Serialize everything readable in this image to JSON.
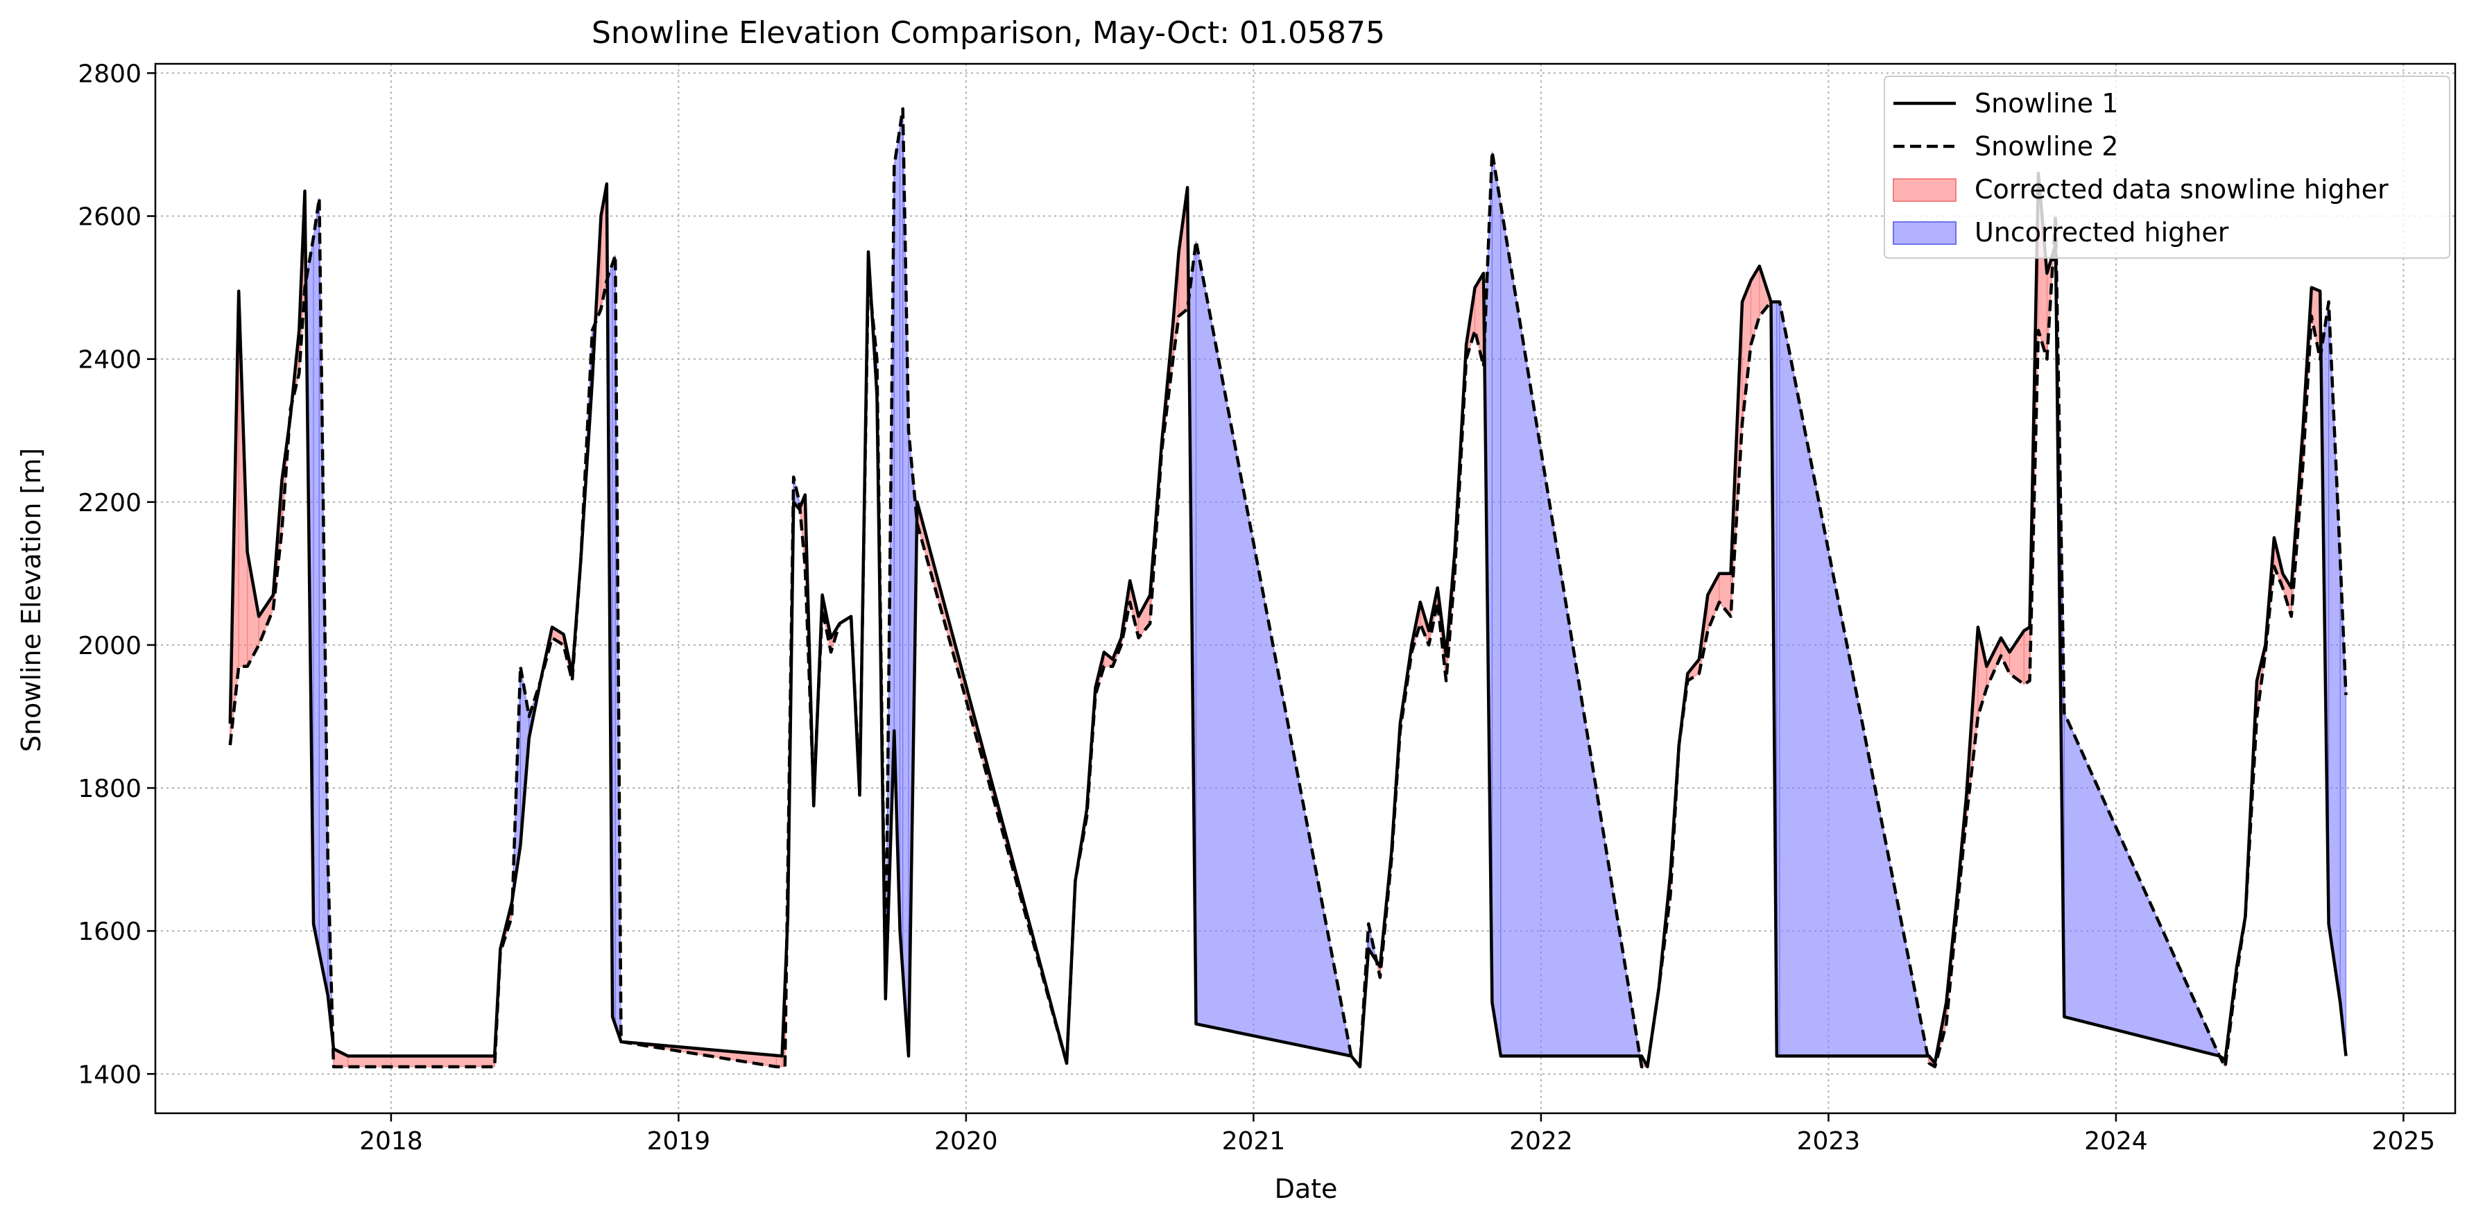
{
  "chart_data": {
    "type": "line",
    "title": "Snowline Elevation Comparison, May-Oct: 01.05875",
    "xlabel": "Date",
    "ylabel": "Snowline Elevation [m]",
    "x_ticks": [
      "2018",
      "2019",
      "2020",
      "2021",
      "2022",
      "2023",
      "2024",
      "2025"
    ],
    "x_tick_values": [
      2018.0,
      2019.0,
      2020.0,
      2021.0,
      2022.0,
      2023.0,
      2024.0,
      2025.0
    ],
    "y_ticks": [
      1400,
      1600,
      1800,
      2000,
      2200,
      2400,
      2600,
      2800
    ],
    "xlim": [
      2017.18,
      2025.18
    ],
    "ylim": [
      1345,
      2813
    ],
    "grid": true,
    "legend_position": "top-right",
    "series": [
      {
        "name": "Snowline 1",
        "style": "solid",
        "color": "#000000",
        "points": [
          [
            2017.44,
            1890
          ],
          [
            2017.47,
            2495
          ],
          [
            2017.5,
            2130
          ],
          [
            2017.54,
            2040
          ],
          [
            2017.59,
            2070
          ],
          [
            2017.62,
            2230
          ],
          [
            2017.65,
            2320
          ],
          [
            2017.68,
            2440
          ],
          [
            2017.7,
            2635
          ],
          [
            2017.73,
            1610
          ],
          [
            2017.78,
            1510
          ],
          [
            2017.8,
            1435
          ],
          [
            2017.85,
            1425
          ],
          [
            2018.36,
            1425
          ],
          [
            2018.38,
            1575
          ],
          [
            2018.42,
            1640
          ],
          [
            2018.45,
            1720
          ],
          [
            2018.48,
            1870
          ],
          [
            2018.52,
            1950
          ],
          [
            2018.56,
            2025
          ],
          [
            2018.6,
            2015
          ],
          [
            2018.63,
            1960
          ],
          [
            2018.66,
            2120
          ],
          [
            2018.7,
            2370
          ],
          [
            2018.73,
            2600
          ],
          [
            2018.75,
            2645
          ],
          [
            2018.77,
            1480
          ],
          [
            2018.8,
            1445
          ],
          [
            2019.36,
            1425
          ],
          [
            2019.38,
            1620
          ],
          [
            2019.4,
            2200
          ],
          [
            2019.42,
            2190
          ],
          [
            2019.44,
            2210
          ],
          [
            2019.47,
            1775
          ],
          [
            2019.5,
            2070
          ],
          [
            2019.53,
            2010
          ],
          [
            2019.56,
            2030
          ],
          [
            2019.6,
            2040
          ],
          [
            2019.63,
            1790
          ],
          [
            2019.66,
            2550
          ],
          [
            2019.69,
            2350
          ],
          [
            2019.72,
            1505
          ],
          [
            2019.75,
            1880
          ],
          [
            2019.77,
            1600
          ],
          [
            2019.8,
            1425
          ],
          [
            2019.83,
            2200
          ],
          [
            2020.35,
            1415
          ],
          [
            2020.38,
            1670
          ],
          [
            2020.42,
            1770
          ],
          [
            2020.45,
            1940
          ],
          [
            2020.48,
            1990
          ],
          [
            2020.51,
            1980
          ],
          [
            2020.54,
            2010
          ],
          [
            2020.57,
            2090
          ],
          [
            2020.6,
            2040
          ],
          [
            2020.64,
            2070
          ],
          [
            2020.68,
            2280
          ],
          [
            2020.72,
            2450
          ],
          [
            2020.74,
            2550
          ],
          [
            2020.77,
            2640
          ],
          [
            2020.8,
            1470
          ],
          [
            2021.34,
            1425
          ],
          [
            2021.37,
            1410
          ],
          [
            2021.4,
            1575
          ],
          [
            2021.44,
            1550
          ],
          [
            2021.48,
            1710
          ],
          [
            2021.51,
            1890
          ],
          [
            2021.55,
            2000
          ],
          [
            2021.58,
            2060
          ],
          [
            2021.61,
            2020
          ],
          [
            2021.64,
            2080
          ],
          [
            2021.67,
            1985
          ],
          [
            2021.7,
            2130
          ],
          [
            2021.74,
            2420
          ],
          [
            2021.77,
            2500
          ],
          [
            2021.8,
            2520
          ],
          [
            2021.83,
            1500
          ],
          [
            2021.86,
            1425
          ],
          [
            2022.35,
            1425
          ],
          [
            2022.37,
            1410
          ],
          [
            2022.41,
            1520
          ],
          [
            2022.45,
            1680
          ],
          [
            2022.48,
            1860
          ],
          [
            2022.51,
            1960
          ],
          [
            2022.55,
            1980
          ],
          [
            2022.58,
            2070
          ],
          [
            2022.62,
            2100
          ],
          [
            2022.66,
            2100
          ],
          [
            2022.7,
            2480
          ],
          [
            2022.73,
            2510
          ],
          [
            2022.76,
            2530
          ],
          [
            2022.8,
            2480
          ],
          [
            2022.82,
            1425
          ],
          [
            2023.35,
            1425
          ],
          [
            2023.37,
            1415
          ],
          [
            2023.41,
            1500
          ],
          [
            2023.45,
            1660
          ],
          [
            2023.48,
            1790
          ],
          [
            2023.52,
            2025
          ],
          [
            2023.55,
            1970
          ],
          [
            2023.6,
            2010
          ],
          [
            2023.63,
            1990
          ],
          [
            2023.68,
            2020
          ],
          [
            2023.7,
            2025
          ],
          [
            2023.73,
            2660
          ],
          [
            2023.76,
            2520
          ],
          [
            2023.79,
            2560
          ],
          [
            2023.82,
            1480
          ],
          [
            2024.36,
            1425
          ],
          [
            2024.38,
            1420
          ],
          [
            2024.42,
            1550
          ],
          [
            2024.45,
            1620
          ],
          [
            2024.49,
            1950
          ],
          [
            2024.52,
            2000
          ],
          [
            2024.55,
            2150
          ],
          [
            2024.58,
            2100
          ],
          [
            2024.61,
            2080
          ],
          [
            2024.65,
            2300
          ],
          [
            2024.68,
            2500
          ],
          [
            2024.71,
            2495
          ],
          [
            2024.74,
            1610
          ],
          [
            2024.78,
            1500
          ],
          [
            2024.8,
            1425
          ]
        ]
      },
      {
        "name": "Snowline 2",
        "style": "dashed",
        "color": "#000000",
        "points": [
          [
            2017.44,
            1860
          ],
          [
            2017.47,
            1970
          ],
          [
            2017.5,
            1970
          ],
          [
            2017.54,
            2000
          ],
          [
            2017.59,
            2050
          ],
          [
            2017.62,
            2160
          ],
          [
            2017.65,
            2330
          ],
          [
            2017.68,
            2380
          ],
          [
            2017.7,
            2500
          ],
          [
            2017.73,
            2570
          ],
          [
            2017.75,
            2625
          ],
          [
            2017.78,
            1700
          ],
          [
            2017.8,
            1410
          ],
          [
            2017.85,
            1410
          ],
          [
            2018.36,
            1410
          ],
          [
            2018.38,
            1570
          ],
          [
            2018.42,
            1620
          ],
          [
            2018.45,
            1970
          ],
          [
            2018.48,
            1900
          ],
          [
            2018.52,
            1950
          ],
          [
            2018.56,
            2010
          ],
          [
            2018.6,
            2000
          ],
          [
            2018.63,
            1950
          ],
          [
            2018.66,
            2120
          ],
          [
            2018.7,
            2440
          ],
          [
            2018.73,
            2470
          ],
          [
            2018.75,
            2510
          ],
          [
            2018.78,
            2545
          ],
          [
            2018.8,
            1445
          ],
          [
            2019.34,
            1410
          ],
          [
            2019.37,
            1410
          ],
          [
            2019.4,
            2235
          ],
          [
            2019.42,
            2200
          ],
          [
            2019.44,
            2110
          ],
          [
            2019.47,
            1790
          ],
          [
            2019.5,
            2050
          ],
          [
            2019.53,
            1990
          ],
          [
            2019.56,
            2030
          ],
          [
            2019.6,
            2040
          ],
          [
            2019.63,
            1800
          ],
          [
            2019.66,
            2520
          ],
          [
            2019.69,
            2400
          ],
          [
            2019.72,
            1520
          ],
          [
            2019.75,
            2670
          ],
          [
            2019.78,
            2750
          ],
          [
            2019.8,
            2300
          ],
          [
            2019.83,
            2170
          ],
          [
            2020.35,
            1415
          ],
          [
            2020.38,
            1670
          ],
          [
            2020.42,
            1760
          ],
          [
            2020.45,
            1930
          ],
          [
            2020.48,
            1970
          ],
          [
            2020.51,
            1970
          ],
          [
            2020.54,
            2000
          ],
          [
            2020.57,
            2060
          ],
          [
            2020.6,
            2010
          ],
          [
            2020.64,
            2030
          ],
          [
            2020.68,
            2270
          ],
          [
            2020.72,
            2400
          ],
          [
            2020.74,
            2460
          ],
          [
            2020.77,
            2470
          ],
          [
            2020.8,
            2565
          ],
          [
            2021.34,
            1425
          ],
          [
            2021.37,
            1410
          ],
          [
            2021.4,
            1610
          ],
          [
            2021.44,
            1535
          ],
          [
            2021.48,
            1700
          ],
          [
            2021.51,
            1880
          ],
          [
            2021.55,
            1990
          ],
          [
            2021.58,
            2030
          ],
          [
            2021.61,
            2000
          ],
          [
            2021.64,
            2060
          ],
          [
            2021.67,
            1950
          ],
          [
            2021.7,
            2100
          ],
          [
            2021.74,
            2400
          ],
          [
            2021.77,
            2440
          ],
          [
            2021.8,
            2390
          ],
          [
            2021.83,
            2690
          ],
          [
            2022.35,
            1410
          ],
          [
            2022.37,
            1410
          ],
          [
            2022.41,
            1520
          ],
          [
            2022.45,
            1650
          ],
          [
            2022.48,
            1860
          ],
          [
            2022.51,
            1950
          ],
          [
            2022.55,
            1960
          ],
          [
            2022.58,
            2020
          ],
          [
            2022.62,
            2060
          ],
          [
            2022.66,
            2040
          ],
          [
            2022.7,
            2310
          ],
          [
            2022.73,
            2420
          ],
          [
            2022.76,
            2460
          ],
          [
            2022.8,
            2480
          ],
          [
            2022.83,
            2480
          ],
          [
            2023.35,
            1415
          ],
          [
            2023.37,
            1410
          ],
          [
            2023.41,
            1470
          ],
          [
            2023.45,
            1640
          ],
          [
            2023.48,
            1760
          ],
          [
            2023.52,
            1900
          ],
          [
            2023.55,
            1940
          ],
          [
            2023.6,
            1985
          ],
          [
            2023.63,
            1960
          ],
          [
            2023.68,
            1945
          ],
          [
            2023.7,
            1950
          ],
          [
            2023.73,
            2440
          ],
          [
            2023.76,
            2400
          ],
          [
            2023.79,
            2600
          ],
          [
            2023.82,
            1905
          ],
          [
            2024.36,
            1425
          ],
          [
            2024.38,
            1410
          ],
          [
            2024.42,
            1540
          ],
          [
            2024.45,
            1620
          ],
          [
            2024.49,
            1900
          ],
          [
            2024.52,
            1990
          ],
          [
            2024.55,
            2110
          ],
          [
            2024.58,
            2080
          ],
          [
            2024.61,
            2040
          ],
          [
            2024.65,
            2250
          ],
          [
            2024.68,
            2460
          ],
          [
            2024.71,
            2400
          ],
          [
            2024.74,
            2480
          ],
          [
            2024.78,
            2120
          ],
          [
            2024.8,
            1930
          ]
        ]
      }
    ],
    "fills": [
      {
        "name": "Corrected data snowline higher",
        "color": "#ff7f7f",
        "opacity": 0.6,
        "edge": "#f08080"
      },
      {
        "name": "Uncorrected higher",
        "color": "#7f7fff",
        "opacity": 0.6,
        "edge": "#7070f0"
      }
    ]
  }
}
